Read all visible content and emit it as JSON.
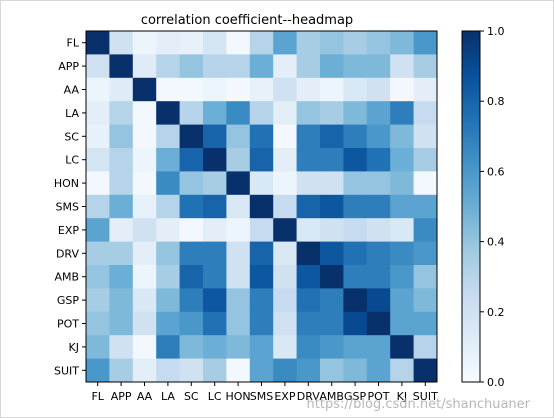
{
  "chart_data": {
    "type": "heatmap",
    "title": "correlation coefficient--headmap",
    "labels": [
      "FL",
      "APP",
      "AA",
      "LA",
      "SC",
      "LC",
      "HON",
      "SMS",
      "EXP",
      "DRV",
      "AMB",
      "GSP",
      "POT",
      "KJ",
      "SUIT"
    ],
    "values": [
      [
        1.0,
        0.2,
        0.05,
        0.1,
        0.08,
        0.18,
        0.02,
        0.3,
        0.55,
        0.35,
        0.4,
        0.35,
        0.4,
        0.45,
        0.6
      ],
      [
        0.2,
        1.0,
        0.12,
        0.3,
        0.4,
        0.3,
        0.3,
        0.5,
        0.1,
        0.35,
        0.5,
        0.45,
        0.45,
        0.2,
        0.35
      ],
      [
        0.05,
        0.12,
        1.0,
        0.02,
        0.02,
        0.05,
        0.02,
        0.08,
        0.2,
        0.1,
        0.05,
        0.15,
        0.2,
        0.02,
        0.1
      ],
      [
        0.1,
        0.3,
        0.02,
        1.0,
        0.3,
        0.5,
        0.65,
        0.3,
        0.1,
        0.4,
        0.35,
        0.45,
        0.55,
        0.7,
        0.25
      ],
      [
        0.08,
        0.4,
        0.02,
        0.3,
        1.0,
        0.8,
        0.4,
        0.75,
        0.02,
        0.7,
        0.8,
        0.7,
        0.6,
        0.45,
        0.2
      ],
      [
        0.18,
        0.3,
        0.05,
        0.5,
        0.8,
        1.0,
        0.35,
        0.8,
        0.1,
        0.7,
        0.7,
        0.85,
        0.75,
        0.5,
        0.35
      ],
      [
        0.02,
        0.3,
        0.02,
        0.65,
        0.4,
        0.35,
        1.0,
        0.15,
        0.05,
        0.2,
        0.2,
        0.4,
        0.4,
        0.45,
        0.02
      ],
      [
        0.3,
        0.5,
        0.08,
        0.3,
        0.75,
        0.8,
        0.15,
        1.0,
        0.25,
        0.8,
        0.85,
        0.7,
        0.7,
        0.55,
        0.55
      ],
      [
        0.55,
        0.1,
        0.2,
        0.1,
        0.02,
        0.1,
        0.05,
        0.25,
        1.0,
        0.15,
        0.2,
        0.25,
        0.2,
        0.15,
        0.65
      ],
      [
        0.35,
        0.35,
        0.1,
        0.4,
        0.7,
        0.7,
        0.2,
        0.8,
        0.15,
        1.0,
        0.85,
        0.75,
        0.7,
        0.65,
        0.6
      ],
      [
        0.4,
        0.5,
        0.05,
        0.35,
        0.8,
        0.7,
        0.2,
        0.85,
        0.2,
        0.85,
        1.0,
        0.7,
        0.7,
        0.6,
        0.4
      ],
      [
        0.35,
        0.45,
        0.15,
        0.45,
        0.7,
        0.85,
        0.4,
        0.7,
        0.25,
        0.75,
        0.7,
        1.0,
        0.9,
        0.55,
        0.45
      ],
      [
        0.4,
        0.45,
        0.2,
        0.55,
        0.6,
        0.75,
        0.4,
        0.7,
        0.2,
        0.7,
        0.7,
        0.9,
        1.0,
        0.55,
        0.55
      ],
      [
        0.45,
        0.2,
        0.02,
        0.7,
        0.45,
        0.5,
        0.45,
        0.55,
        0.15,
        0.65,
        0.6,
        0.55,
        0.55,
        1.0,
        0.3
      ],
      [
        0.6,
        0.35,
        0.1,
        0.25,
        0.2,
        0.35,
        0.02,
        0.55,
        0.65,
        0.6,
        0.4,
        0.45,
        0.55,
        0.3,
        1.0
      ]
    ],
    "colorbar": {
      "ticks": [
        "0.0",
        "0.2",
        "0.4",
        "0.6",
        "0.8",
        "1.0"
      ],
      "range": [
        0,
        1
      ],
      "colormap": "Blues"
    },
    "grid": false
  },
  "watermark": "https://blog.csdn.net/shanchuaner"
}
